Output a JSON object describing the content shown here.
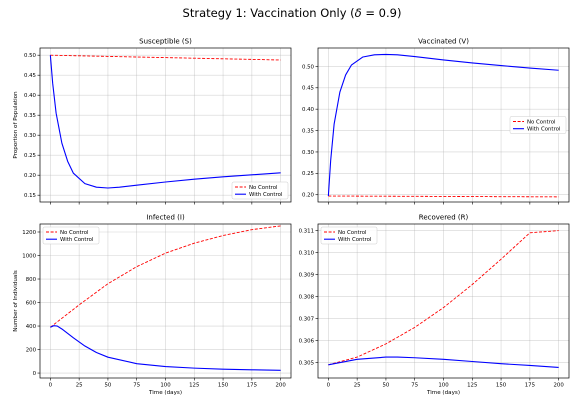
{
  "figure": {
    "title_prefix": "Strategy 1: Vaccination Only (",
    "title_delta": "δ",
    "title_suffix": " = 0.9)"
  },
  "colors": {
    "no_control": "#ff0000",
    "with_control": "#0000ff",
    "grid": "#b0b0b0"
  },
  "chart_data": [
    {
      "type": "line",
      "title": "Susceptible (S)",
      "xlabel": "",
      "ylabel": "Proportion of Population",
      "xlim": [
        -9,
        209
      ],
      "ylim": [
        0.133,
        0.518
      ],
      "xticks": [
        0,
        25,
        50,
        75,
        100,
        125,
        150,
        175,
        200
      ],
      "show_xtick_labels": false,
      "yticks": [
        0.15,
        0.2,
        0.25,
        0.3,
        0.35,
        0.4,
        0.45,
        0.5
      ],
      "ytick_labels": [
        "0.15",
        "0.20",
        "0.25",
        "0.30",
        "0.35",
        "0.40",
        "0.45",
        "0.50"
      ],
      "grid": true,
      "legend": "lower-right",
      "series": [
        {
          "name": "No Control",
          "style": "dashed",
          "color": "#ff0000",
          "x": [
            0,
            50,
            100,
            150,
            200
          ],
          "y": [
            0.5,
            0.497,
            0.494,
            0.491,
            0.488
          ]
        },
        {
          "name": "With Control",
          "style": "solid",
          "color": "#0000ff",
          "x": [
            0,
            2,
            5,
            10,
            15,
            20,
            30,
            40,
            50,
            60,
            75,
            100,
            125,
            150,
            175,
            200
          ],
          "y": [
            0.5,
            0.43,
            0.355,
            0.28,
            0.235,
            0.205,
            0.179,
            0.17,
            0.168,
            0.17,
            0.175,
            0.183,
            0.19,
            0.196,
            0.201,
            0.206
          ]
        }
      ]
    },
    {
      "type": "line",
      "title": "Vaccinated (V)",
      "xlabel": "",
      "ylabel": "",
      "xlim": [
        -9,
        209
      ],
      "ylim": [
        0.183,
        0.543
      ],
      "xticks": [
        0,
        25,
        50,
        75,
        100,
        125,
        150,
        175,
        200
      ],
      "show_xtick_labels": false,
      "yticks": [
        0.2,
        0.25,
        0.3,
        0.35,
        0.4,
        0.45,
        0.5
      ],
      "ytick_labels": [
        "0.20",
        "0.25",
        "0.30",
        "0.35",
        "0.40",
        "0.45",
        "0.50"
      ],
      "grid": true,
      "legend": "center-right",
      "series": [
        {
          "name": "No Control",
          "style": "dashed",
          "color": "#ff0000",
          "x": [
            0,
            100,
            200
          ],
          "y": [
            0.197,
            0.196,
            0.195
          ]
        },
        {
          "name": "With Control",
          "style": "solid",
          "color": "#0000ff",
          "x": [
            0,
            2,
            5,
            10,
            15,
            20,
            30,
            40,
            50,
            60,
            75,
            100,
            125,
            150,
            175,
            200
          ],
          "y": [
            0.197,
            0.28,
            0.365,
            0.44,
            0.48,
            0.503,
            0.522,
            0.527,
            0.528,
            0.527,
            0.523,
            0.515,
            0.508,
            0.502,
            0.496,
            0.491
          ]
        }
      ]
    },
    {
      "type": "line",
      "title": "Infected (I)",
      "xlabel": "Time (days)",
      "ylabel": "Number of Individuals",
      "xlim": [
        -9,
        209
      ],
      "ylim": [
        -42,
        1268
      ],
      "xticks": [
        0,
        25,
        50,
        75,
        100,
        125,
        150,
        175,
        200
      ],
      "xtick_labels": [
        "0",
        "25",
        "50",
        "75",
        "100",
        "125",
        "150",
        "175",
        "200"
      ],
      "show_xtick_labels": true,
      "yticks": [
        0,
        200,
        400,
        600,
        800,
        1000,
        1200
      ],
      "ytick_labels": [
        "0",
        "200",
        "400",
        "600",
        "800",
        "1000",
        "1200"
      ],
      "grid": true,
      "legend": "upper-left",
      "series": [
        {
          "name": "No Control",
          "style": "dashed",
          "color": "#ff0000",
          "x": [
            0,
            25,
            50,
            75,
            100,
            125,
            150,
            175,
            200
          ],
          "y": [
            390,
            580,
            760,
            905,
            1020,
            1105,
            1170,
            1220,
            1252
          ]
        },
        {
          "name": "With Control",
          "style": "solid",
          "color": "#0000ff",
          "x": [
            0,
            3,
            6,
            10,
            20,
            30,
            40,
            50,
            75,
            100,
            125,
            150,
            175,
            200
          ],
          "y": [
            390,
            403,
            400,
            375,
            300,
            230,
            175,
            135,
            80,
            55,
            42,
            33,
            28,
            23
          ]
        }
      ]
    },
    {
      "type": "line",
      "title": "Recovered (R)",
      "xlabel": "Time (days)",
      "ylabel": "",
      "xlim": [
        -9,
        209
      ],
      "ylim": [
        0.3043,
        0.3113
      ],
      "xticks": [
        0,
        25,
        50,
        75,
        100,
        125,
        150,
        175,
        200
      ],
      "xtick_labels": [
        "0",
        "25",
        "50",
        "75",
        "100",
        "125",
        "150",
        "175",
        "200"
      ],
      "show_xtick_labels": true,
      "yticks": [
        0.305,
        0.306,
        0.307,
        0.308,
        0.309,
        0.31,
        0.311
      ],
      "ytick_labels": [
        "0.305",
        "0.306",
        "0.307",
        "0.308",
        "0.309",
        "0.310",
        "0.311"
      ],
      "grid": true,
      "legend": "upper-left",
      "series": [
        {
          "name": "No Control",
          "style": "dashed",
          "color": "#ff0000",
          "x": [
            0,
            25,
            50,
            75,
            100,
            125,
            150,
            175,
            200
          ],
          "y": [
            0.3049,
            0.30525,
            0.30585,
            0.3066,
            0.3075,
            0.30855,
            0.3097,
            0.3109,
            0.311
          ]
        },
        {
          "name": "With Control",
          "style": "solid",
          "color": "#0000ff",
          "x": [
            0,
            25,
            50,
            60,
            75,
            100,
            125,
            150,
            175,
            200
          ],
          "y": [
            0.3049,
            0.30515,
            0.30525,
            0.30525,
            0.30522,
            0.30515,
            0.30505,
            0.30495,
            0.30487,
            0.30478
          ]
        }
      ]
    }
  ]
}
